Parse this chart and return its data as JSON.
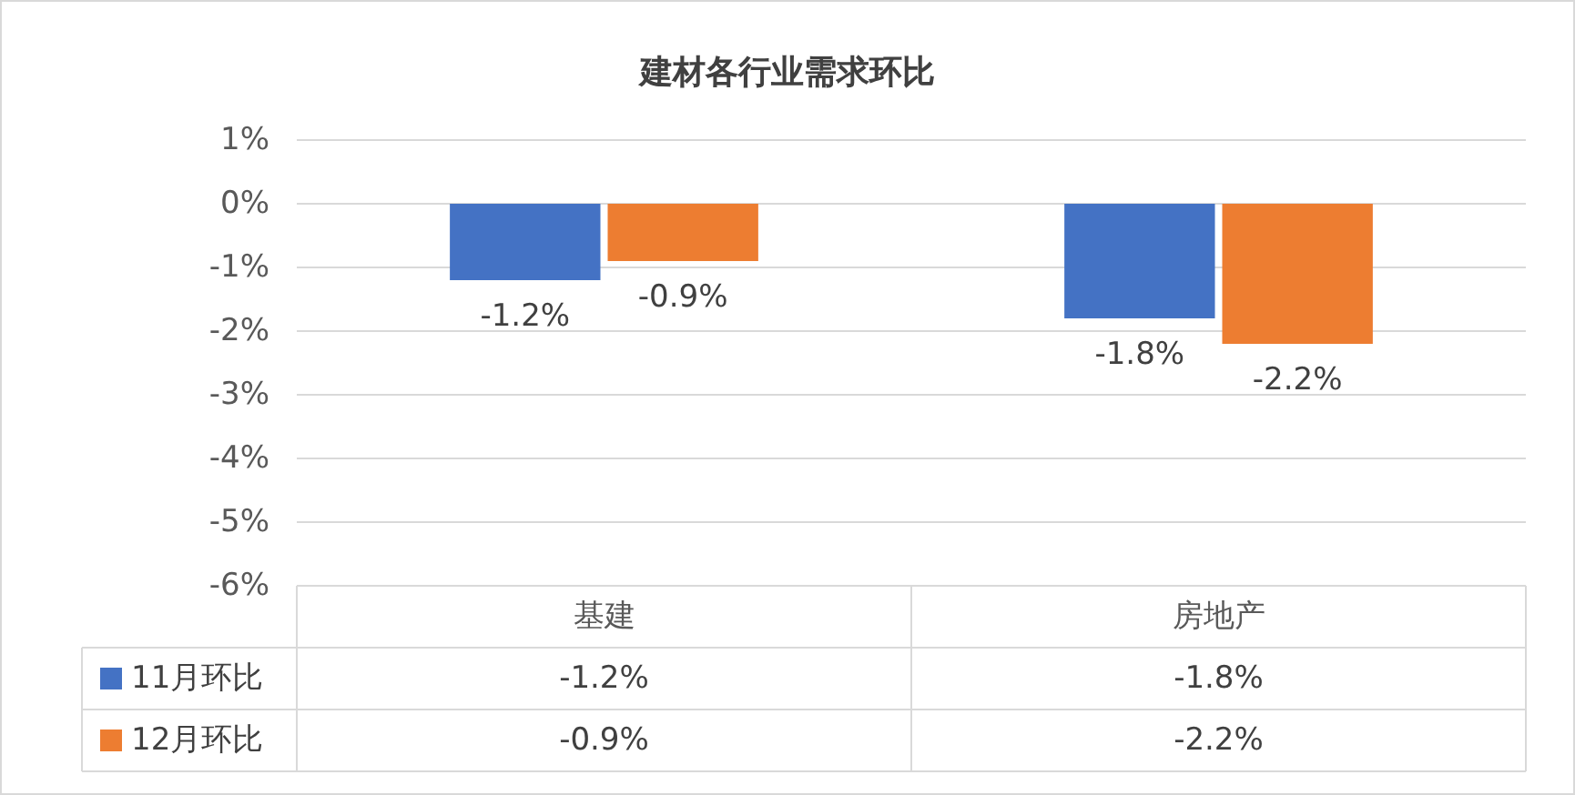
{
  "chart_data": {
    "type": "bar",
    "title": "建材各行业需求环比",
    "categories": [
      "基建",
      "房地产"
    ],
    "series": [
      {
        "name": "11月环比",
        "color": "#4472c4",
        "values": [
          -1.2,
          -1.8
        ],
        "value_labels": [
          "-1.2%",
          "-1.8%"
        ]
      },
      {
        "name": "12月环比",
        "color": "#ed7d31",
        "values": [
          -0.9,
          -2.2
        ],
        "value_labels": [
          "-0.9%",
          "-2.2%"
        ]
      }
    ],
    "ylim": [
      -6,
      1
    ],
    "yticks": [
      {
        "value": -6,
        "label": "-6%"
      },
      {
        "value": -5,
        "label": "-5%"
      },
      {
        "value": -4,
        "label": "-4%"
      },
      {
        "value": -3,
        "label": "-3%"
      },
      {
        "value": -2,
        "label": "-2%"
      },
      {
        "value": -1,
        "label": "-1%"
      },
      {
        "value": 0,
        "label": "0%"
      },
      {
        "value": 1,
        "label": "1%"
      }
    ],
    "grid": "y",
    "legend": "bottom",
    "data_labels": true
  }
}
